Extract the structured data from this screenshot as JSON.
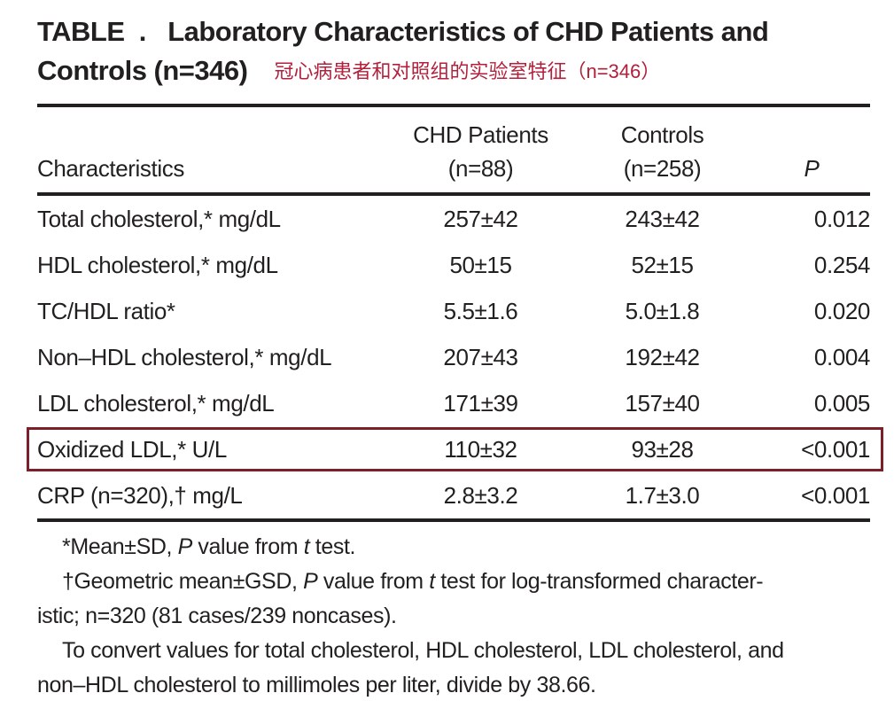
{
  "colors": {
    "text": "#211f20",
    "rule": "#211f20",
    "annotation_red": "#b2203c",
    "highlight_box": "#7c1f2a",
    "background": "#ffffff"
  },
  "header": {
    "title_line1": "TABLE  .   Laboratory Characteristics of CHD Patients and",
    "title_line2": "Controls (n=346)",
    "annotation_zh": "冠心病患者和对照组的实验室特征（n=346）"
  },
  "table": {
    "columns": {
      "characteristics": "Characteristics",
      "chd_line1": "CHD Patients",
      "chd_line2": "(n=88)",
      "controls_line1": "Controls",
      "controls_line2": "(n=258)",
      "p": "P"
    },
    "rows": [
      {
        "label": "Total cholesterol,* mg/dL",
        "chd": "257±42",
        "controls": "243±42",
        "p": "0.012",
        "highlighted": false
      },
      {
        "label": "HDL cholesterol,* mg/dL",
        "chd": "50±15",
        "controls": "52±15",
        "p": "0.254",
        "highlighted": false
      },
      {
        "label": "TC/HDL ratio*",
        "chd": "5.5±1.6",
        "controls": "5.0±1.8",
        "p": "0.020",
        "highlighted": false
      },
      {
        "label": "Non–HDL cholesterol,* mg/dL",
        "chd": "207±43",
        "controls": "192±42",
        "p": "0.004",
        "highlighted": false
      },
      {
        "label": "LDL cholesterol,* mg/dL",
        "chd": "171±39",
        "controls": "157±40",
        "p": "0.005",
        "highlighted": false
      },
      {
        "label": "Oxidized LDL,* U/L",
        "chd": "110±32",
        "controls": "93±28",
        "p": "<0.001",
        "highlighted": true
      },
      {
        "label": "CRP (n=320),† mg/L",
        "chd": "2.8±3.2",
        "controls": "1.7±3.0",
        "p": "<0.001",
        "highlighted": false
      }
    ]
  },
  "footnotes": {
    "lines": [
      {
        "indent": true,
        "segments": [
          {
            "t": "*Mean±SD, "
          },
          {
            "t": "P",
            "i": true
          },
          {
            "t": " value from "
          },
          {
            "t": "t",
            "i": true
          },
          {
            "t": " test."
          }
        ]
      },
      {
        "indent": true,
        "segments": [
          {
            "t": "†Geometric mean±GSD, "
          },
          {
            "t": "P",
            "i": true
          },
          {
            "t": " value from "
          },
          {
            "t": "t",
            "i": true
          },
          {
            "t": " test for log-transformed character-"
          }
        ]
      },
      {
        "indent": false,
        "segments": [
          {
            "t": "istic; n=320 (81 cases/239 noncases)."
          }
        ]
      },
      {
        "indent": true,
        "segments": [
          {
            "t": "To convert values for total cholesterol, HDL cholesterol, LDL cholesterol, and"
          }
        ]
      },
      {
        "indent": false,
        "segments": [
          {
            "t": "non–HDL cholesterol to millimoles per liter, divide by 38.66."
          }
        ]
      }
    ]
  }
}
